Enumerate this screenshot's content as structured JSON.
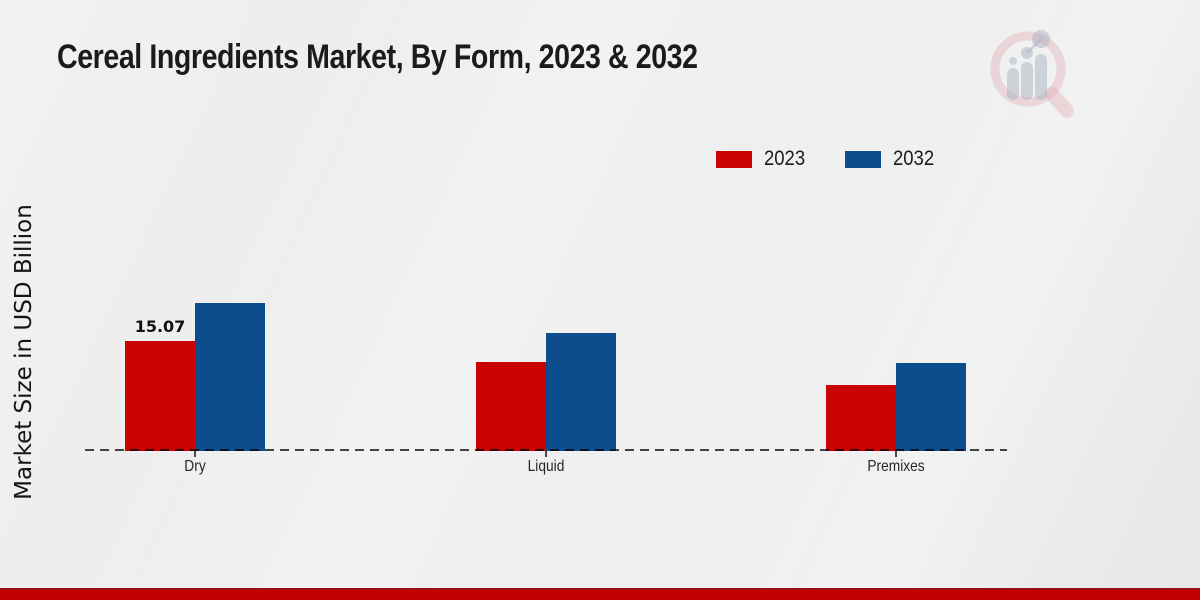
{
  "page": {
    "footer_color": "#c00000",
    "background_color": "#ececec"
  },
  "chart_data": {
    "type": "bar",
    "title": "Cereal Ingredients Market, By Form, 2023 & 2032",
    "ylabel": "Market Size in USD Billion",
    "xlabel": "",
    "categories": [
      "Dry",
      "Liquid",
      "Premixes"
    ],
    "series": [
      {
        "name": "2023",
        "color": "#c90202",
        "values": [
          15.07,
          12.2,
          9.0
        ]
      },
      {
        "name": "2032",
        "color": "#0d4c8d",
        "values": [
          20.3,
          16.2,
          12.1
        ]
      }
    ],
    "value_labels": [
      {
        "series": "2023",
        "category": "Dry",
        "text": "15.07"
      }
    ],
    "ylim": [
      0,
      22
    ],
    "grid": false,
    "axis_style": "dashed-baseline",
    "legend_position": "top-right"
  }
}
